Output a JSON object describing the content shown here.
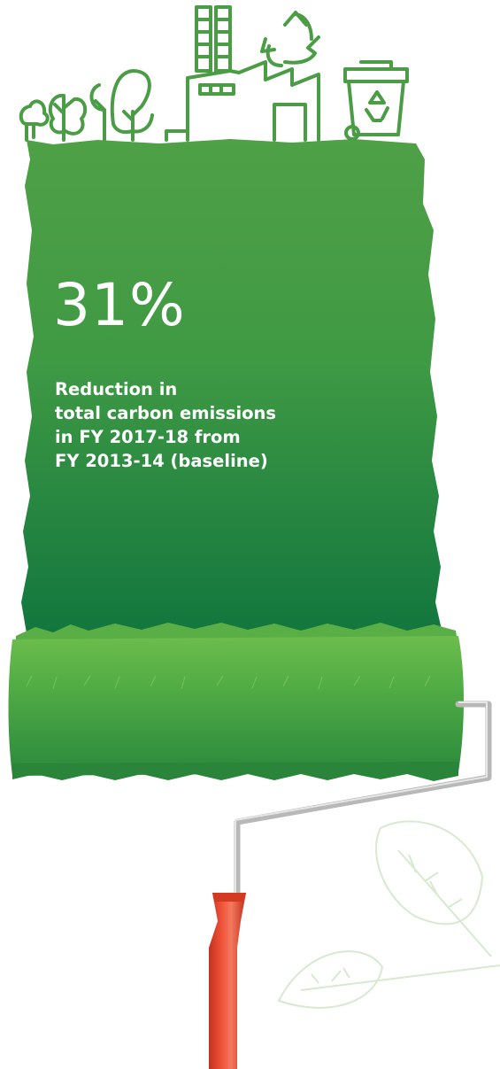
{
  "stat": {
    "value": "31%"
  },
  "description": {
    "lines": [
      "Reduction in",
      "total carbon emissions",
      "in FY 2017-18 from",
      "FY 2013-14 (baseline)"
    ]
  },
  "colors": {
    "paint_light": "#4fa046",
    "paint_dark": "#12763e",
    "roller_light": "#64b84a",
    "roller_dark": "#2e8d3e",
    "handle_red": "#e8432c",
    "leaf_outline": "#d7e9cf"
  },
  "icons": [
    "tree-icon",
    "factory-icon",
    "recycle-icon",
    "recycle-bin-icon",
    "leaf-icon"
  ]
}
